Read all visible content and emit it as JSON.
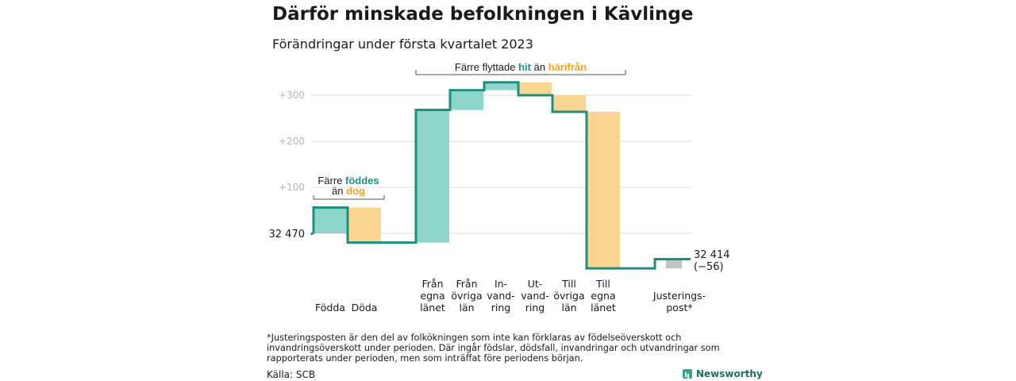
{
  "title": "Därför minskade befolkningen i Kävlinge",
  "subtitle": "Förändringar under första kvartalet 2023",
  "footnote": "*Justeringsposten är den del av folkökningen som inte kan förklaras av födelseöverskott och invandringsöverskott under perioden. Där ingår födslar, dödsfall, invandringar och utvandringar som rapporterats under perioden, men som inträffat före periodens början.",
  "source": "Källa: SCB",
  "brand": "Newsworthy",
  "colors": {
    "increase": "#8ed6cc",
    "decrease": "#fad58f",
    "adjust": "#c2c2c2",
    "line": "#1e8f7f",
    "teal_text": "#1e9184",
    "orange_text": "#f0a32c",
    "grid": "#dddddd",
    "tick": "#b5b5b5"
  },
  "chart_data": {
    "type": "waterfall",
    "start_label": "32 470",
    "end_label": [
      "32 414",
      "(−56)"
    ],
    "yaxis": {
      "min": -80,
      "max": 340,
      "ticks": [
        0,
        100,
        200,
        300
      ],
      "tick_labels": [
        "",
        "+100",
        "+200",
        "+300"
      ]
    },
    "steps": [
      {
        "key": "fodda",
        "label": [
          "Födda"
        ],
        "delta": 56,
        "kind": "increase"
      },
      {
        "key": "doda",
        "label": [
          "Döda"
        ],
        "delta": -76,
        "kind": "decrease"
      },
      {
        "key": "gap",
        "label": [],
        "delta": 0,
        "kind": "gap"
      },
      {
        "key": "fran_egna",
        "label": [
          "Från",
          "egna",
          "länet"
        ],
        "delta": 288,
        "kind": "increase"
      },
      {
        "key": "fran_ovriga",
        "label": [
          "Från",
          "övriga",
          "län"
        ],
        "delta": 43,
        "kind": "increase"
      },
      {
        "key": "invandring",
        "label": [
          "In-",
          "vand-",
          "ring"
        ],
        "delta": 17,
        "kind": "increase"
      },
      {
        "key": "utvandring",
        "label": [
          "Ut-",
          "vand-",
          "ring"
        ],
        "delta": -28,
        "kind": "decrease"
      },
      {
        "key": "till_ovriga",
        "label": [
          "Till",
          "övriga",
          "län"
        ],
        "delta": -36,
        "kind": "decrease"
      },
      {
        "key": "till_egna",
        "label": [
          "Till",
          "egna",
          "länet"
        ],
        "delta": -340,
        "kind": "decrease"
      },
      {
        "key": "gap2",
        "label": [],
        "delta": 0,
        "kind": "gap"
      },
      {
        "key": "justering",
        "label": [
          "Justerings-",
          "post*"
        ],
        "delta": 20,
        "kind": "adjust"
      }
    ],
    "annotations": [
      {
        "key": "fodda_doda",
        "parts": [
          [
            "Färre ",
            "dark"
          ],
          [
            "föddes",
            "teal"
          ],
          [
            "|",
            "br"
          ],
          [
            "än ",
            "dark"
          ],
          [
            "dog",
            "orange"
          ]
        ]
      },
      {
        "key": "flytt",
        "parts": [
          [
            "Färre flyttade ",
            "dark"
          ],
          [
            "hit",
            "teal"
          ],
          [
            " än ",
            "dark"
          ],
          [
            "härifrån",
            "orange"
          ]
        ]
      }
    ]
  }
}
